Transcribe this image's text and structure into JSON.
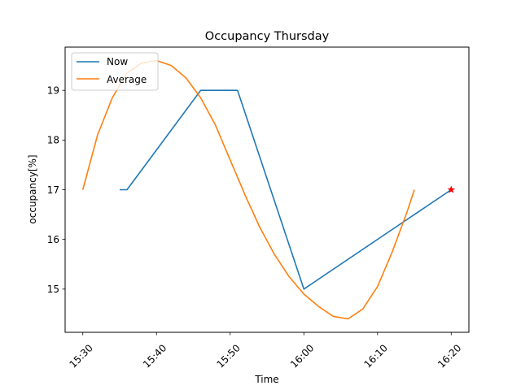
{
  "chart_data": {
    "type": "line",
    "title": "Occupancy Thursday",
    "xlabel": "Time",
    "ylabel": "occupancy[%]",
    "x_ticks": [
      "15:30",
      "15:40",
      "15:50",
      "16:00",
      "16:10",
      "16:20"
    ],
    "y_ticks": [
      15,
      16,
      17,
      18,
      19
    ],
    "xlim": [
      "15:27.6",
      "16:22.4"
    ],
    "ylim": [
      14.13,
      19.87
    ],
    "grid": false,
    "legend_position": "top-left",
    "series": [
      {
        "name": "Now",
        "color": "#1f77b4",
        "points": [
          {
            "x": "15:35",
            "y": 17.0
          },
          {
            "x": "15:36",
            "y": 17.0
          },
          {
            "x": "15:46",
            "y": 19.0
          },
          {
            "x": "15:51",
            "y": 19.0
          },
          {
            "x": "16:00",
            "y": 15.0
          },
          {
            "x": "16:20",
            "y": 17.0
          }
        ]
      },
      {
        "name": "Average",
        "color": "#ff7f0e",
        "points": [
          {
            "x": "15:30",
            "y": 17.0
          },
          {
            "x": "15:32",
            "y": 18.1
          },
          {
            "x": "15:34",
            "y": 18.85
          },
          {
            "x": "15:36",
            "y": 19.35
          },
          {
            "x": "15:38",
            "y": 19.55
          },
          {
            "x": "15:40",
            "y": 19.6
          },
          {
            "x": "15:42",
            "y": 19.5
          },
          {
            "x": "15:44",
            "y": 19.25
          },
          {
            "x": "15:46",
            "y": 18.85
          },
          {
            "x": "15:48",
            "y": 18.3
          },
          {
            "x": "15:50",
            "y": 17.6
          },
          {
            "x": "15:52",
            "y": 16.9
          },
          {
            "x": "15:54",
            "y": 16.25
          },
          {
            "x": "15:56",
            "y": 15.7
          },
          {
            "x": "15:58",
            "y": 15.25
          },
          {
            "x": "16:00",
            "y": 14.9
          },
          {
            "x": "16:02",
            "y": 14.65
          },
          {
            "x": "16:04",
            "y": 14.45
          },
          {
            "x": "16:06",
            "y": 14.4
          },
          {
            "x": "16:08",
            "y": 14.6
          },
          {
            "x": "16:10",
            "y": 15.05
          },
          {
            "x": "16:12",
            "y": 15.75
          },
          {
            "x": "16:14",
            "y": 16.55
          },
          {
            "x": "16:15",
            "y": 17.0
          }
        ]
      }
    ],
    "marker": {
      "x": "16:20",
      "y": 17.0,
      "color": "#ff0000",
      "shape": "star"
    }
  }
}
